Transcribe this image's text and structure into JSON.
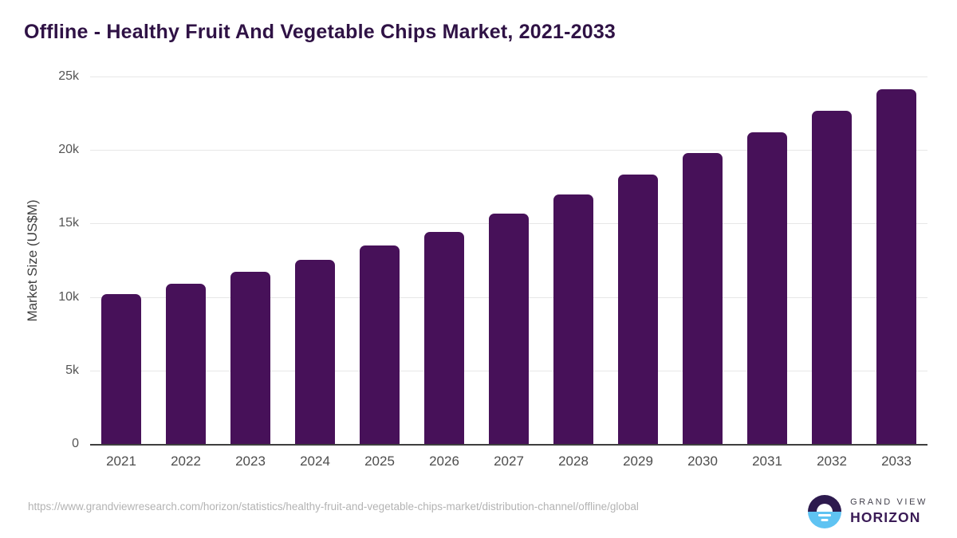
{
  "page_title": "Offline - Healthy Fruit And Vegetable Chips Market, 2021-2033",
  "chart_data": {
    "type": "bar",
    "title": "Offline - Healthy Fruit And Vegetable Chips Market, 2021-2033",
    "categories": [
      "2021",
      "2022",
      "2023",
      "2024",
      "2025",
      "2026",
      "2027",
      "2028",
      "2029",
      "2030",
      "2031",
      "2032",
      "2033"
    ],
    "values": [
      10200,
      10900,
      11700,
      12550,
      13500,
      14450,
      15650,
      17000,
      18350,
      19800,
      21200,
      22650,
      24150
    ],
    "unit": "US$M",
    "xlabel": "",
    "ylabel": "Market Size (US$M)",
    "ylim": [
      0,
      25000
    ],
    "yticks": [
      0,
      5000,
      10000,
      15000,
      20000,
      25000
    ],
    "ytick_labels": [
      "0",
      "5k",
      "10k",
      "15k",
      "20k",
      "25k"
    ],
    "grid": true,
    "legend": false,
    "bar_color": "#471159"
  },
  "footer": {
    "source_url": "https://www.grandviewresearch.com/horizon/statistics/healthy-fruit-and-vegetable-chips-market/distribution-channel/offline/global",
    "brand": {
      "icon": "horizon-sunrise-icon",
      "name_top": "GRAND VIEW",
      "name_bottom": "HORIZON"
    }
  },
  "colors": {
    "title": "#2f1245",
    "bar": "#471159",
    "axis_label": "#3f3f3f",
    "tick_label": "#555555",
    "tick_label_x": "#4d4d4d",
    "grid_line": "#e7e7e7",
    "baseline": "#3f3f3f",
    "url_text": "#b3b3b3",
    "logo_dark": "#2d1a4e",
    "logo_blue": "#5fc3f2",
    "brand_top": "#44424e",
    "brand_bottom": "#3a1b56"
  }
}
